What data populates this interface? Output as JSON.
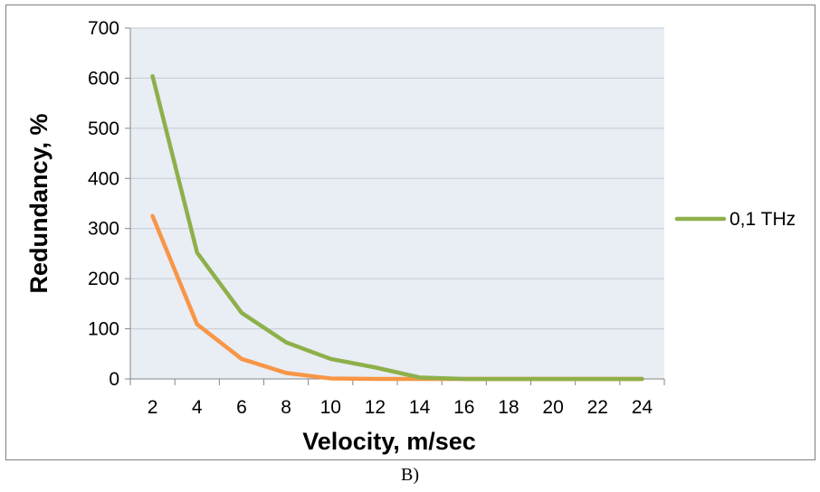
{
  "chart_data": {
    "type": "line",
    "x": [
      2,
      4,
      6,
      8,
      10,
      12,
      14,
      16,
      18,
      20,
      22,
      24
    ],
    "xlabel": "Velocity, m/sec",
    "ylabel": "Redundancy, %",
    "ylim": [
      0,
      700
    ],
    "y_ticks": [
      0,
      100,
      200,
      300,
      400,
      500,
      600,
      700
    ],
    "grid": "horizontal",
    "legend_position": "right",
    "plot_background": "#e9edf4",
    "series": [
      {
        "name": "0,1 THz",
        "color": "#8db04a",
        "values": [
          604,
          252,
          132,
          73,
          40,
          23,
          3,
          0,
          0,
          0,
          0,
          0
        ]
      },
      {
        "name": "",
        "color": "#f79646",
        "values": [
          325,
          109,
          40,
          12,
          1,
          0,
          0,
          0,
          0,
          0,
          0,
          0
        ]
      }
    ]
  },
  "caption": "B)"
}
